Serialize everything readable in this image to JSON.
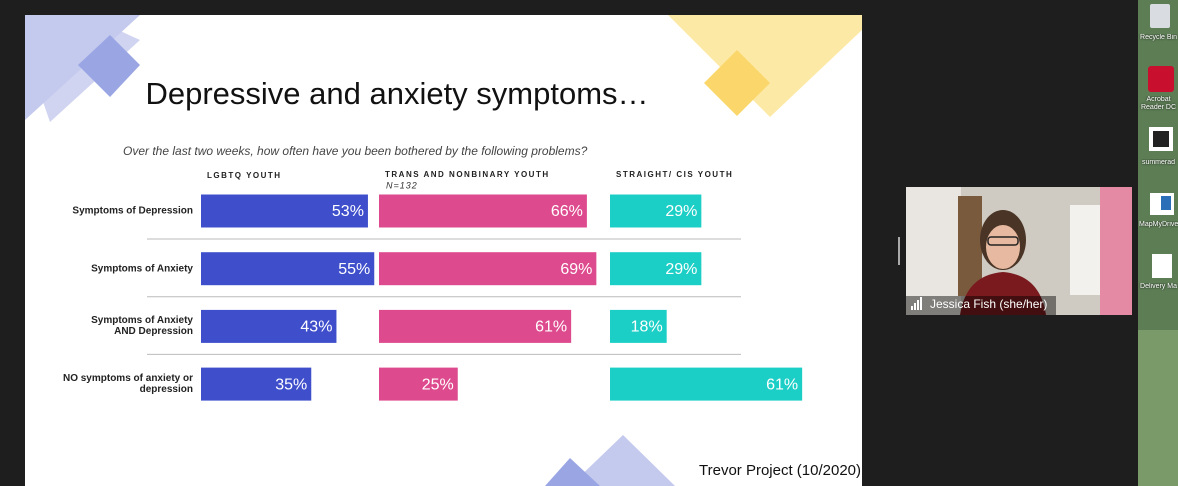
{
  "chart_data": {
    "type": "bar",
    "title": "Depressive and anxiety symptoms…",
    "subtitle": "Over the last two weeks, how often have you been bothered by the following problems?",
    "categories": [
      "Symptoms of Depression",
      "Symptoms of Anxiety",
      "Symptoms of Anxiety\nAND Depression",
      "NO symptoms of anxiety or\ndepression"
    ],
    "series": [
      {
        "name": "LGBTQ YOUTH",
        "color": "#3f4fcc",
        "values": [
          53,
          55,
          43,
          35
        ],
        "value_labels": [
          "53%",
          "55%",
          "43%",
          "35%"
        ]
      },
      {
        "name": "TRANS AND NONBINARY YOUTH",
        "color": "#de4a8e",
        "values": [
          66,
          69,
          61,
          25
        ],
        "value_labels": [
          "66%",
          "69%",
          "61%",
          "25%"
        ]
      },
      {
        "name": "STRAIGHT/ CIS YOUTH",
        "color": "#1ccfc6",
        "values": [
          29,
          29,
          18,
          61
        ],
        "value_labels": [
          "29%",
          "29%",
          "18%",
          "61%"
        ]
      }
    ],
    "annotations": [
      "N=132"
    ],
    "source": "Trevor Project (10/2020)"
  },
  "participant": {
    "name": "Jessica Fish (she/her)"
  },
  "desktop_icons": [
    "Recycle Bin",
    "Acrobat Reader DC",
    "summerad",
    "MapMyDrive",
    "Delivery Ma"
  ]
}
